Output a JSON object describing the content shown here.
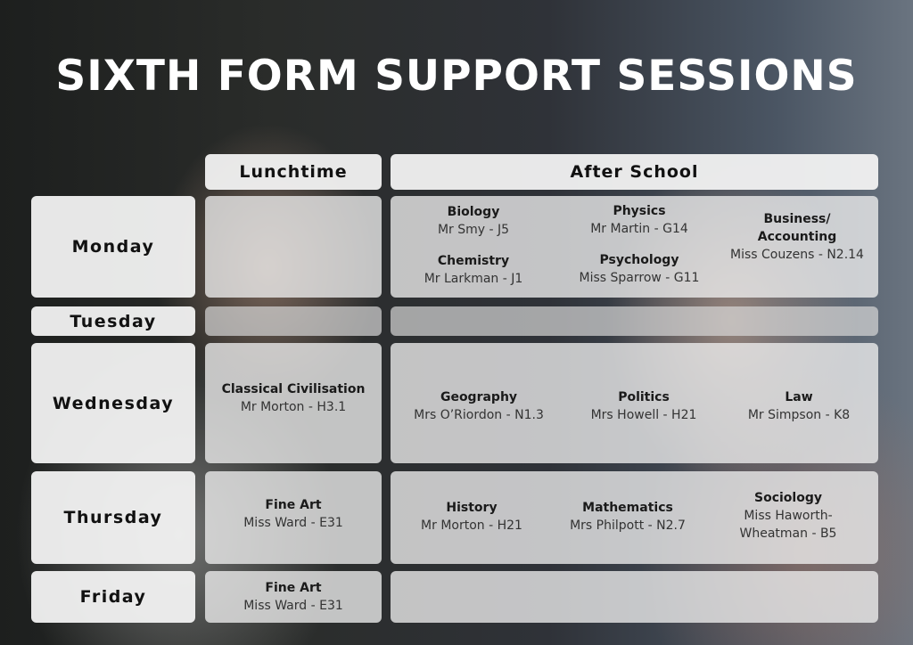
{
  "title": "SIXTH FORM SUPPORT SESSIONS",
  "headers": {
    "lunchtime": "Lunchtime",
    "after_school": "After School"
  },
  "days": [
    "Monday",
    "Tuesday",
    "Wednesday",
    "Thursday",
    "Friday"
  ],
  "monday": {
    "after": [
      {
        "subject": "Biology",
        "teacher": "Mr Smy - J5"
      },
      {
        "subject": "Chemistry",
        "teacher": "Mr Larkman - J1"
      },
      {
        "subject": "Physics",
        "teacher": "Mr Martin - G14"
      },
      {
        "subject": "Psychology",
        "teacher": "Miss Sparrow - G11"
      },
      {
        "subject": "Business/ Accounting",
        "teacher": "Miss Couzens - N2.14"
      }
    ]
  },
  "wednesday": {
    "lunch": {
      "subject": "Classical Civilisation",
      "teacher": "Mr Morton - H3.1"
    },
    "after": [
      {
        "subject": "Geography",
        "teacher": "Mrs O’Riordon - N1.3"
      },
      {
        "subject": "Politics",
        "teacher": "Mrs Howell - H21"
      },
      {
        "subject": "Law",
        "teacher": "Mr Simpson - K8"
      }
    ]
  },
  "thursday": {
    "lunch": {
      "subject": "Fine Art",
      "teacher": "Miss Ward - E31"
    },
    "after": [
      {
        "subject": "History",
        "teacher": "Mr Morton - H21"
      },
      {
        "subject": "Mathematics",
        "teacher": "Mrs Philpott - N2.7"
      },
      {
        "subject": "Sociology",
        "teacher": "Miss Haworth-Wheatman - B5"
      }
    ]
  },
  "friday": {
    "lunch": {
      "subject": "Fine Art",
      "teacher": "Miss Ward - E31"
    }
  }
}
